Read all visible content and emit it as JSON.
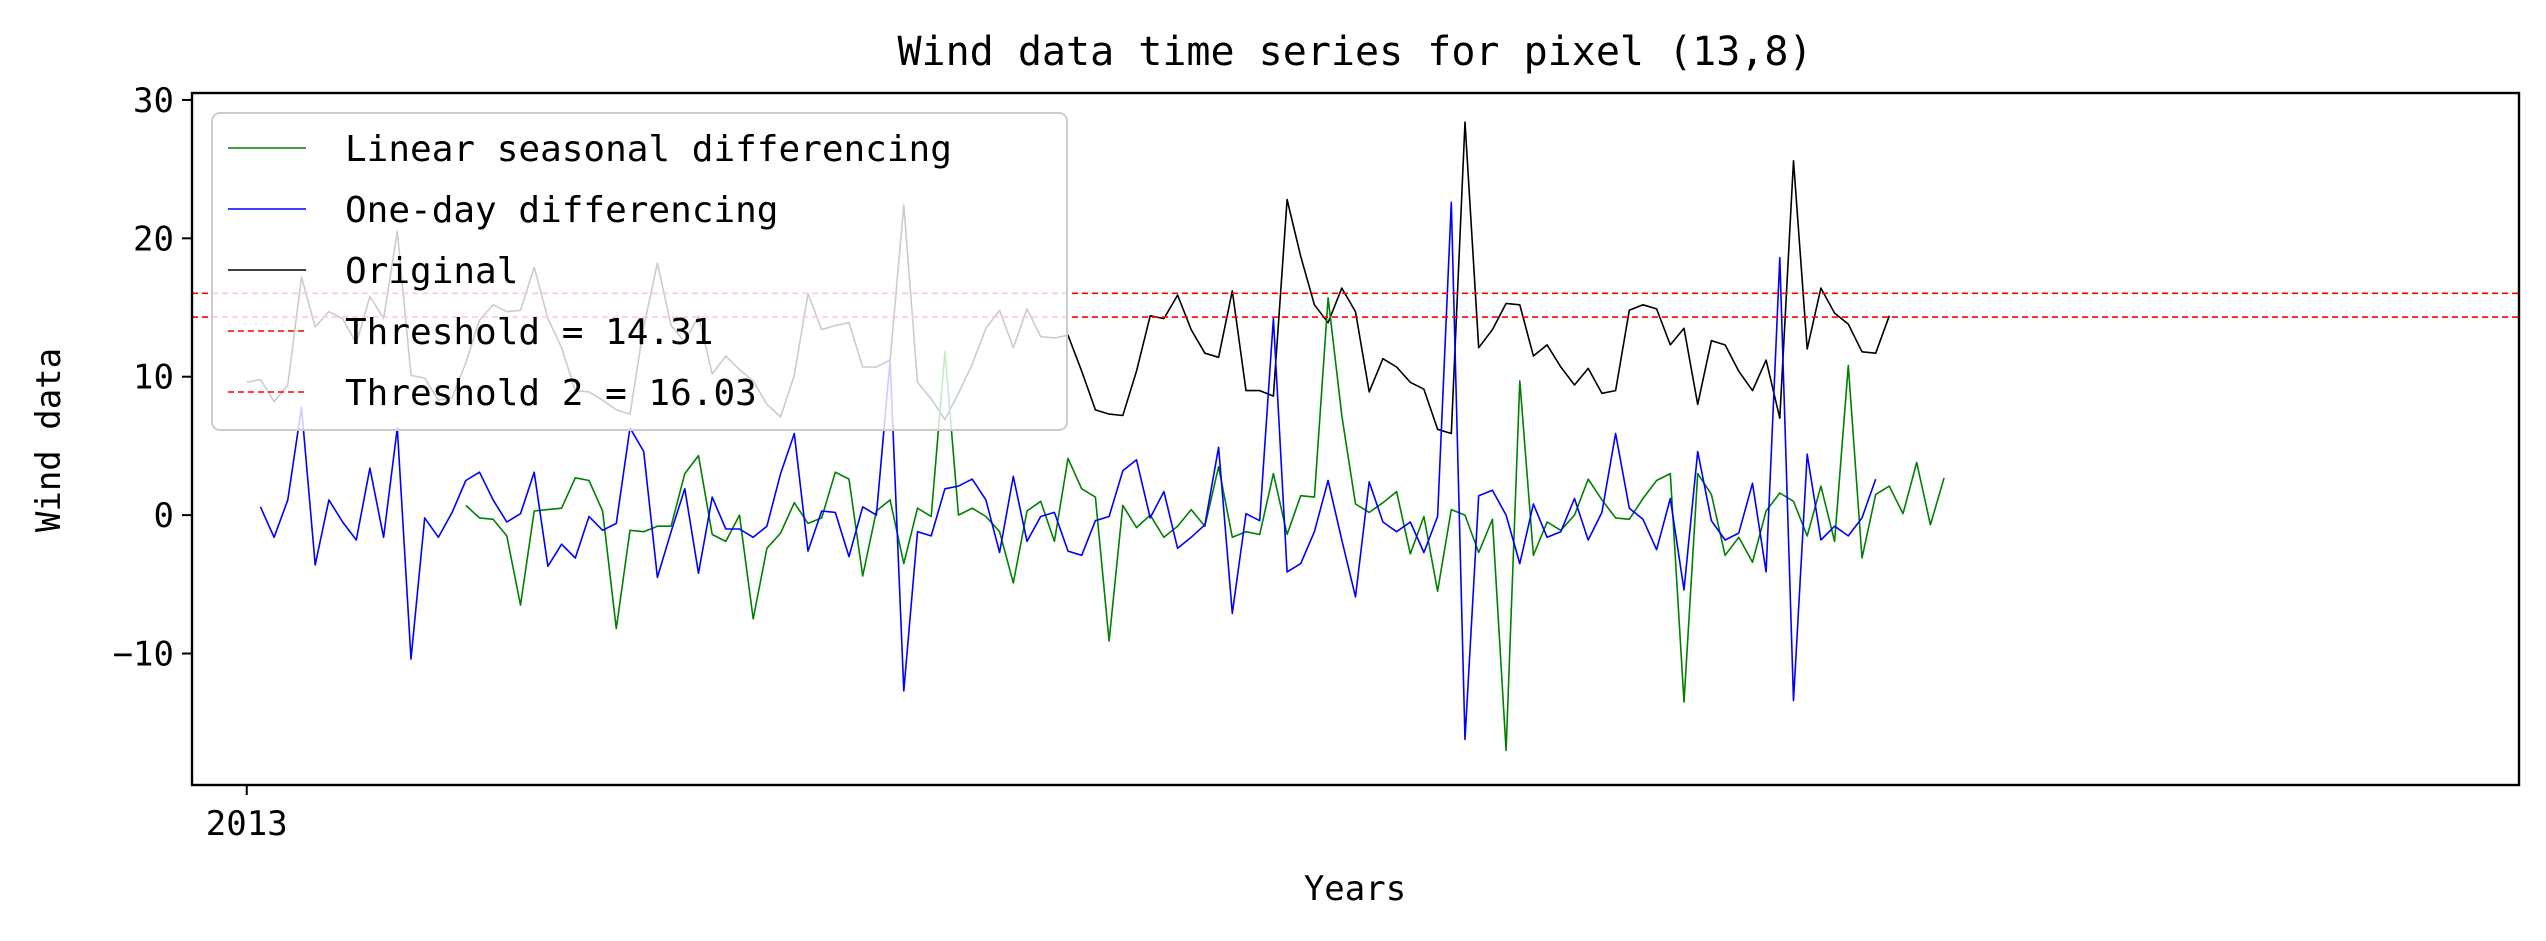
{
  "chart_data": {
    "type": "line",
    "title": "Wind data time series for pixel (13,8)",
    "xlabel": "Years",
    "ylabel": "Wind data",
    "x_ticks": [
      {
        "x": 0,
        "label": "2013"
      }
    ],
    "xlim": [
      -4,
      166
    ],
    "ylim": [
      -19.5,
      30.5
    ],
    "y_ticks": [
      -10,
      0,
      10,
      20,
      30
    ],
    "grid": false,
    "legend_position": "top-left",
    "series": [
      {
        "name": "Linear seasonal differencing",
        "color": "#008000",
        "start": 16,
        "values": [
          0.7,
          -0.2,
          -0.3,
          -1.5,
          -6.5,
          0.3,
          0.4,
          0.5,
          2.7,
          2.5,
          0.3,
          -8.2,
          -1.1,
          -1.2,
          -0.8,
          -0.8,
          3.0,
          4.3,
          -1.4,
          -1.9,
          0.0,
          -7.5,
          -2.4,
          -1.3,
          0.9,
          -0.6,
          -0.2,
          3.1,
          2.6,
          -4.4,
          0.3,
          1.1,
          -3.5,
          0.5,
          -0.1,
          11.8,
          0.0,
          0.5,
          -0.1,
          -1.2,
          -4.9,
          0.3,
          1.0,
          -1.9,
          4.1,
          1.9,
          1.3,
          -9.1,
          0.7,
          -0.9,
          0.0,
          -1.6,
          -0.8,
          0.4,
          -0.8,
          3.5,
          -1.6,
          -1.2,
          -1.4,
          3.0,
          -1.4,
          1.4,
          1.3,
          15.7,
          7.2,
          0.8,
          0.2,
          0.9,
          1.7,
          -2.8,
          -0.1,
          -5.5,
          0.4,
          0.0,
          -2.7,
          -0.3,
          -17.0,
          9.7,
          -2.9,
          -0.5,
          -1.1,
          0.0,
          2.6,
          1.1,
          -0.2,
          -0.3,
          1.2,
          2.5,
          3.0,
          -13.5,
          3.0,
          1.5,
          -2.9,
          -1.6,
          -3.4,
          0.3,
          1.6,
          1.0,
          -1.5,
          2.1,
          -1.9,
          10.8,
          -3.1,
          1.5,
          2.1,
          0.1,
          3.8,
          -0.7,
          2.7
        ]
      },
      {
        "name": "One-day differencing",
        "color": "#0000ff",
        "start": 1,
        "values": [
          0.6,
          -1.6,
          1.1,
          7.8,
          -3.6,
          1.1,
          -0.5,
          -1.8,
          3.4,
          -1.6,
          6.3,
          -10.4,
          -0.2,
          -1.6,
          0.2,
          2.5,
          3.1,
          1.1,
          -0.5,
          0.1,
          3.1,
          -3.7,
          -2.1,
          -3.1,
          -0.1,
          -1.1,
          -0.6,
          6.3,
          4.6,
          -4.5,
          -1.2,
          1.9,
          -4.2,
          1.3,
          -1.0,
          -1.0,
          -1.6,
          -0.8,
          3.0,
          5.9,
          -2.6,
          0.3,
          0.2,
          -3.0,
          0.6,
          0.0,
          11.2,
          -12.7,
          -1.2,
          -1.5,
          1.9,
          2.1,
          2.6,
          1.1,
          -2.7,
          2.8,
          -1.9,
          -0.1,
          0.2,
          -2.6,
          -2.9,
          -0.4,
          -0.1,
          3.2,
          4.0,
          -0.2,
          1.7,
          -2.4,
          -1.6,
          -0.7,
          4.9,
          -7.1,
          0.1,
          -0.4,
          14.2,
          -4.1,
          -3.5,
          -1.2,
          2.5,
          -1.8,
          -5.9,
          2.4,
          -0.5,
          -1.2,
          -0.5,
          -2.7,
          -0.1,
          22.6,
          -16.2,
          1.4,
          1.8,
          0.0,
          -3.5,
          0.8,
          -1.6,
          -1.2,
          1.2,
          -1.8,
          0.2,
          5.9,
          0.5,
          -0.3,
          -2.5,
          1.2,
          -5.4,
          4.6,
          -0.4,
          -1.8,
          -1.3,
          2.3,
          -4.1,
          18.6,
          -13.4,
          4.4,
          -1.8,
          -0.8,
          -1.5,
          -0.2,
          2.6
        ]
      },
      {
        "name": "Original",
        "color": "#000000",
        "start": 0,
        "values": [
          9.6,
          9.8,
          8.2,
          9.4,
          17.2,
          13.6,
          14.7,
          14.2,
          12.4,
          15.8,
          14.2,
          20.5,
          10.1,
          9.9,
          8.3,
          8.5,
          11.0,
          14.1,
          15.2,
          14.7,
          14.8,
          17.9,
          14.2,
          12.1,
          9.0,
          8.9,
          8.3,
          7.6,
          7.3,
          13.6,
          18.2,
          13.7,
          12.5,
          14.4,
          10.2,
          11.5,
          10.5,
          9.7,
          8.0,
          7.1,
          10.1,
          16.0,
          13.4,
          13.7,
          13.9,
          10.7,
          10.7,
          11.2,
          22.4,
          9.6,
          8.4,
          6.9,
          8.8,
          10.9,
          13.5,
          14.8,
          12.1,
          14.9,
          12.9,
          12.8,
          13.0,
          10.4,
          7.6,
          7.3,
          7.2,
          10.4,
          14.4,
          14.2,
          15.9,
          13.4,
          11.7,
          11.4,
          16.2,
          9.0,
          9.0,
          8.6,
          22.8,
          18.7,
          15.2,
          13.9,
          16.4,
          14.7,
          8.9,
          11.3,
          10.7,
          9.6,
          9.1,
          6.2,
          5.9,
          28.4,
          12.1,
          13.4,
          15.3,
          15.2,
          11.5,
          12.3,
          10.7,
          9.4,
          10.6,
          8.8,
          9.0,
          14.8,
          15.2,
          14.9,
          12.3,
          13.5,
          8.0,
          12.6,
          12.3,
          10.4,
          9.0,
          11.2,
          7.0,
          25.6,
          12.0,
          16.4,
          14.6,
          13.8,
          11.8,
          11.7,
          14.4
        ]
      }
    ],
    "thresholds": [
      {
        "label": "Threshold = 14.31",
        "value": 14.31,
        "color": "#ff0000",
        "dash": "dashed"
      },
      {
        "label": "Threshold 2 = 16.03",
        "value": 16.03,
        "color": "#ff0000",
        "dash": "dashed"
      }
    ]
  }
}
